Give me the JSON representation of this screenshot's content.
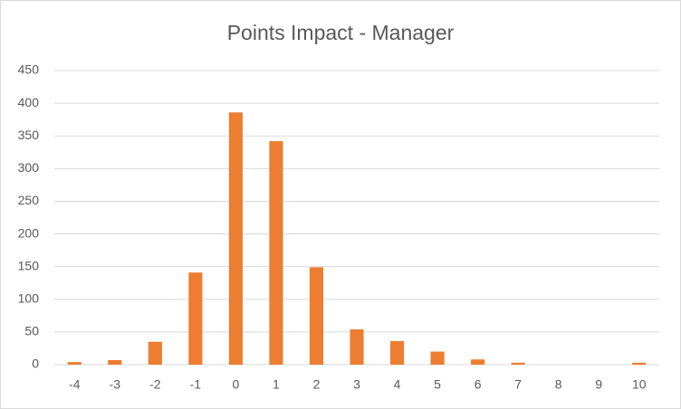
{
  "chart_data": {
    "type": "bar",
    "title": "Points Impact - Manager",
    "categories": [
      "-4",
      "-3",
      "-2",
      "-1",
      "0",
      "1",
      "2",
      "3",
      "4",
      "5",
      "6",
      "7",
      "8",
      "9",
      "10"
    ],
    "values": [
      4,
      7,
      35,
      141,
      386,
      342,
      149,
      54,
      36,
      20,
      8,
      3,
      0,
      0,
      3
    ],
    "color": "#ed7d31",
    "ylim": [
      0,
      450
    ],
    "yticks": [
      0,
      50,
      100,
      150,
      200,
      250,
      300,
      350,
      400,
      450
    ],
    "grid": true
  }
}
